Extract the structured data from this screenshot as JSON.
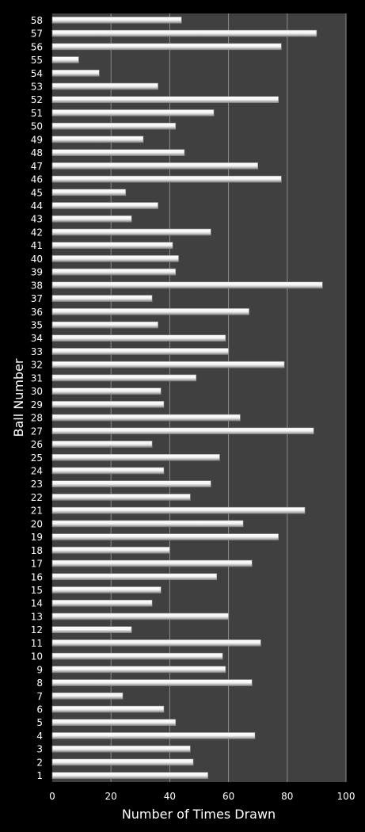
{
  "chart_data": {
    "type": "bar",
    "orientation": "horizontal",
    "title": "",
    "xlabel": "Number of Times Drawn",
    "ylabel": "Ball Number",
    "xlim": [
      0,
      100
    ],
    "xticks": [
      0,
      20,
      40,
      60,
      80,
      100
    ],
    "grid": true,
    "legend": "none",
    "colors": {
      "plot_background": "#404040",
      "page_background": "#000000",
      "bar_fill": "#f2f2f2",
      "gridline": "#8c8c8c",
      "text": "#ffffff"
    },
    "categories": [
      "1",
      "2",
      "3",
      "4",
      "5",
      "6",
      "7",
      "8",
      "9",
      "10",
      "11",
      "12",
      "13",
      "14",
      "15",
      "16",
      "17",
      "18",
      "19",
      "20",
      "21",
      "22",
      "23",
      "24",
      "25",
      "26",
      "27",
      "28",
      "29",
      "30",
      "31",
      "32",
      "33",
      "34",
      "35",
      "36",
      "37",
      "38",
      "39",
      "40",
      "41",
      "42",
      "43",
      "44",
      "45",
      "46",
      "47",
      "48",
      "49",
      "50",
      "51",
      "52",
      "53",
      "54",
      "55",
      "56",
      "57",
      "58"
    ],
    "values": [
      53,
      48,
      47,
      69,
      42,
      38,
      24,
      68,
      59,
      58,
      71,
      27,
      60,
      34,
      37,
      56,
      68,
      40,
      77,
      65,
      86,
      47,
      54,
      38,
      57,
      34,
      89,
      64,
      38,
      37,
      49,
      79,
      60,
      59,
      36,
      67,
      34,
      92,
      42,
      43,
      41,
      54,
      27,
      36,
      25,
      78,
      70,
      45,
      31,
      42,
      55,
      77,
      36,
      16,
      9,
      78,
      90,
      44
    ]
  }
}
